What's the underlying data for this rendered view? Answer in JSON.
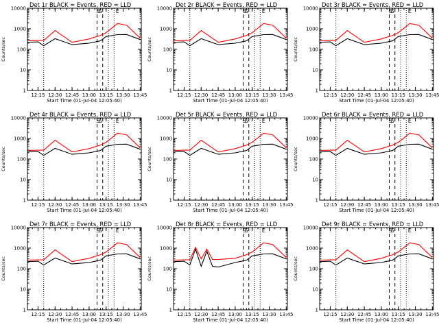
{
  "window": {
    "title": ""
  },
  "colors": {
    "events": "#000000",
    "lld": "#ff0000",
    "axis": "#000000",
    "background": "#ffffff"
  },
  "chart_data": [
    {
      "type": "line",
      "title": "Det 1r BLACK = Events, RED = LLD",
      "xlabel": "Start Time (01-Jul-04 12:05:40)",
      "ylabel": "Counts/sec",
      "x_ticks": [
        "12:15",
        "12:30",
        "12:45",
        "13:00",
        "13:15",
        "13:30",
        "13:45"
      ],
      "y_ticks": [
        "1",
        "10",
        "100",
        "1000",
        "10000"
      ],
      "ylim": [
        1,
        10000
      ],
      "yscale": "log",
      "markers": [
        "S",
        "S",
        "E"
      ],
      "series": [
        {
          "name": "Events",
          "color": "#000000",
          "x": [
            "12:06",
            "12:15",
            "12:20",
            "12:30",
            "12:45",
            "13:00",
            "13:10",
            "13:15",
            "13:25",
            "13:33",
            "13:45"
          ],
          "values": [
            220,
            230,
            150,
            330,
            170,
            200,
            260,
            420,
            520,
            530,
            300
          ]
        },
        {
          "name": "LLD",
          "color": "#ff0000",
          "x": [
            "12:06",
            "12:15",
            "12:20",
            "12:30",
            "12:45",
            "13:00",
            "13:10",
            "13:15",
            "13:25",
            "13:33",
            "13:45"
          ],
          "values": [
            260,
            270,
            270,
            820,
            220,
            320,
            480,
            650,
            1800,
            1500,
            350
          ]
        }
      ]
    },
    {
      "type": "line",
      "title": "Det 2r BLACK = Events, RED = LLD",
      "xlabel": "Start Time (01-Jul-04 12:05:40)",
      "ylabel": "Counts/sec",
      "x_ticks": [
        "12:15",
        "12:30",
        "12:45",
        "13:00",
        "13:15",
        "13:30",
        "13:45"
      ],
      "y_ticks": [
        "1",
        "10",
        "100",
        "1000",
        "10000"
      ],
      "ylim": [
        1,
        10000
      ],
      "yscale": "log",
      "markers": [
        "S",
        "S",
        "E"
      ],
      "series": [
        {
          "name": "Events",
          "color": "#000000",
          "x": [
            "12:06",
            "12:15",
            "12:20",
            "12:30",
            "12:45",
            "13:00",
            "13:10",
            "13:15",
            "13:25",
            "13:33",
            "13:45"
          ],
          "values": [
            220,
            230,
            150,
            330,
            170,
            200,
            260,
            420,
            520,
            530,
            300
          ]
        },
        {
          "name": "LLD",
          "color": "#ff0000",
          "x": [
            "12:06",
            "12:15",
            "12:20",
            "12:30",
            "12:45",
            "13:00",
            "13:10",
            "13:15",
            "13:25",
            "13:33",
            "13:45"
          ],
          "values": [
            260,
            270,
            270,
            820,
            220,
            320,
            480,
            650,
            1800,
            1500,
            350
          ]
        }
      ]
    },
    {
      "type": "line",
      "title": "Det 3r BLACK = Events, RED = LLD",
      "xlabel": "Start Time (01-Jul-04 12:05:40)",
      "ylabel": "Counts/sec",
      "x_ticks": [
        "12:15",
        "12:30",
        "12:45",
        "13:00",
        "13:15",
        "13:30",
        "13:45"
      ],
      "y_ticks": [
        "1",
        "10",
        "100",
        "1000",
        "10000"
      ],
      "ylim": [
        1,
        10000
      ],
      "yscale": "log",
      "markers": [
        "S",
        "S",
        "E"
      ],
      "series": [
        {
          "name": "Events",
          "color": "#000000",
          "x": [
            "12:06",
            "12:15",
            "12:20",
            "12:30",
            "12:45",
            "13:00",
            "13:10",
            "13:15",
            "13:25",
            "13:33",
            "13:45"
          ],
          "values": [
            220,
            230,
            150,
            330,
            170,
            200,
            260,
            420,
            520,
            530,
            300
          ]
        },
        {
          "name": "LLD",
          "color": "#ff0000",
          "x": [
            "12:06",
            "12:15",
            "12:20",
            "12:30",
            "12:45",
            "13:00",
            "13:10",
            "13:15",
            "13:25",
            "13:33",
            "13:45"
          ],
          "values": [
            260,
            270,
            270,
            820,
            220,
            320,
            480,
            650,
            1800,
            1500,
            350
          ]
        }
      ]
    },
    {
      "type": "line",
      "title": "Det 4r BLACK = Events, RED = LLD",
      "xlabel": "Start Time (01-Jul-04 12:05:40)",
      "ylabel": "Counts/sec",
      "x_ticks": [
        "12:15",
        "12:30",
        "12:45",
        "13:00",
        "13:15",
        "13:30",
        "13:45"
      ],
      "y_ticks": [
        "1",
        "10",
        "100",
        "1000",
        "10000"
      ],
      "ylim": [
        1,
        10000
      ],
      "yscale": "log",
      "markers": [
        "S",
        "S",
        "E"
      ],
      "series": [
        {
          "name": "Events",
          "color": "#000000",
          "x": [
            "12:06",
            "12:15",
            "12:20",
            "12:30",
            "12:45",
            "13:00",
            "13:10",
            "13:15",
            "13:25",
            "13:33",
            "13:45"
          ],
          "values": [
            220,
            230,
            150,
            330,
            170,
            200,
            260,
            420,
            520,
            530,
            300
          ]
        },
        {
          "name": "LLD",
          "color": "#ff0000",
          "x": [
            "12:06",
            "12:15",
            "12:20",
            "12:30",
            "12:45",
            "13:00",
            "13:10",
            "13:15",
            "13:25",
            "13:33",
            "13:45"
          ],
          "values": [
            260,
            270,
            270,
            820,
            220,
            320,
            480,
            650,
            1800,
            1500,
            350
          ]
        }
      ]
    },
    {
      "type": "line",
      "title": "Det 5r BLACK = Events, RED = LLD",
      "xlabel": "Start Time (01-Jul-04 12:05:40)",
      "ylabel": "Counts/sec",
      "x_ticks": [
        "12:15",
        "12:30",
        "12:45",
        "13:00",
        "13:15",
        "13:30",
        "13:45"
      ],
      "y_ticks": [
        "1",
        "10",
        "100",
        "1000",
        "10000"
      ],
      "ylim": [
        1,
        10000
      ],
      "yscale": "log",
      "markers": [
        "S",
        "S",
        "E"
      ],
      "series": [
        {
          "name": "Events",
          "color": "#000000",
          "x": [
            "12:06",
            "12:15",
            "12:20",
            "12:30",
            "12:45",
            "13:00",
            "13:10",
            "13:15",
            "13:25",
            "13:33",
            "13:45"
          ],
          "values": [
            220,
            230,
            150,
            330,
            170,
            200,
            260,
            420,
            520,
            530,
            300
          ]
        },
        {
          "name": "LLD",
          "color": "#ff0000",
          "x": [
            "12:06",
            "12:15",
            "12:20",
            "12:30",
            "12:45",
            "13:00",
            "13:10",
            "13:15",
            "13:25",
            "13:33",
            "13:45"
          ],
          "values": [
            260,
            270,
            270,
            820,
            220,
            320,
            480,
            650,
            1800,
            1500,
            350
          ]
        }
      ]
    },
    {
      "type": "line",
      "title": "Det 6r BLACK = Events, RED = LLD",
      "xlabel": "Start Time (01-Jul-04 12:05:40)",
      "ylabel": "Counts/sec",
      "x_ticks": [
        "12:15",
        "12:30",
        "12:45",
        "13:00",
        "13:15",
        "13:30",
        "13:45"
      ],
      "y_ticks": [
        "1",
        "10",
        "100",
        "1000",
        "10000"
      ],
      "ylim": [
        1,
        10000
      ],
      "yscale": "log",
      "markers": [
        "S",
        "S",
        "E"
      ],
      "series": [
        {
          "name": "Events",
          "color": "#000000",
          "x": [
            "12:06",
            "12:15",
            "12:20",
            "12:30",
            "12:45",
            "13:00",
            "13:10",
            "13:15",
            "13:25",
            "13:33",
            "13:45"
          ],
          "values": [
            220,
            230,
            150,
            330,
            170,
            200,
            260,
            420,
            520,
            530,
            300
          ]
        },
        {
          "name": "LLD",
          "color": "#ff0000",
          "x": [
            "12:06",
            "12:15",
            "12:20",
            "12:30",
            "12:45",
            "13:00",
            "13:10",
            "13:15",
            "13:25",
            "13:33",
            "13:45"
          ],
          "values": [
            260,
            270,
            270,
            820,
            220,
            320,
            480,
            650,
            1800,
            1500,
            350
          ]
        }
      ]
    },
    {
      "type": "line",
      "title": "Det 7r BLACK = Events, RED = LLD",
      "xlabel": "Start Time (01-Jul-04 12:05:40)",
      "ylabel": "Counts/sec",
      "x_ticks": [
        "12:15",
        "12:30",
        "12:45",
        "13:00",
        "13:15",
        "13:30",
        "13:45"
      ],
      "y_ticks": [
        "1",
        "10",
        "100",
        "1000",
        "10000"
      ],
      "ylim": [
        1,
        10000
      ],
      "yscale": "log",
      "markers": [
        "S",
        "S",
        "E"
      ],
      "series": [
        {
          "name": "Events",
          "color": "#000000",
          "x": [
            "12:06",
            "12:15",
            "12:20",
            "12:30",
            "12:45",
            "13:00",
            "13:10",
            "13:15",
            "13:25",
            "13:33",
            "13:45"
          ],
          "values": [
            220,
            230,
            150,
            330,
            170,
            200,
            260,
            420,
            520,
            530,
            300
          ]
        },
        {
          "name": "LLD",
          "color": "#ff0000",
          "x": [
            "12:06",
            "12:15",
            "12:20",
            "12:30",
            "12:45",
            "13:00",
            "13:10",
            "13:15",
            "13:25",
            "13:33",
            "13:45"
          ],
          "values": [
            260,
            270,
            270,
            820,
            220,
            320,
            480,
            650,
            1800,
            1500,
            350
          ]
        }
      ]
    },
    {
      "type": "line",
      "title": "Det 8r BLACK = Events, RED = LLD",
      "xlabel": "Start Time (01-Jul-04 12:05:40)",
      "ylabel": "Counts/sec",
      "x_ticks": [
        "12:15",
        "12:30",
        "12:45",
        "13:00",
        "13:15",
        "13:30",
        "13:45"
      ],
      "y_ticks": [
        "1",
        "10",
        "100",
        "1000",
        "10000"
      ],
      "ylim": [
        1,
        10000
      ],
      "yscale": "log",
      "markers": [
        "S",
        "S",
        "E"
      ],
      "series": [
        {
          "name": "Events",
          "color": "#000000",
          "x": [
            "12:06",
            "12:15",
            "12:20",
            "12:25",
            "12:30",
            "12:35",
            "12:40",
            "12:45",
            "13:00",
            "13:10",
            "13:15",
            "13:25",
            "13:33",
            "13:45"
          ],
          "values": [
            220,
            230,
            150,
            900,
            130,
            700,
            130,
            120,
            200,
            260,
            420,
            520,
            530,
            300
          ]
        },
        {
          "name": "LLD",
          "color": "#ff0000",
          "x": [
            "12:06",
            "12:15",
            "12:20",
            "12:25",
            "12:30",
            "12:35",
            "12:40",
            "12:45",
            "13:00",
            "13:10",
            "13:15",
            "13:25",
            "13:33",
            "13:45"
          ],
          "values": [
            260,
            270,
            270,
            1100,
            300,
            900,
            280,
            280,
            320,
            480,
            650,
            1800,
            1500,
            350
          ]
        }
      ]
    },
    {
      "type": "line",
      "title": "Det 9r BLACK = Events, RED = LLD",
      "xlabel": "Start Time (01-Jul-04 12:05:40)",
      "ylabel": "Counts/sec",
      "x_ticks": [
        "12:15",
        "12:30",
        "12:45",
        "13:00",
        "13:15",
        "13:30",
        "13:45"
      ],
      "y_ticks": [
        "1",
        "10",
        "100",
        "1000",
        "10000"
      ],
      "ylim": [
        1,
        10000
      ],
      "yscale": "log",
      "markers": [
        "S",
        "S",
        "E"
      ],
      "series": [
        {
          "name": "Events",
          "color": "#000000",
          "x": [
            "12:06",
            "12:15",
            "12:20",
            "12:30",
            "12:45",
            "13:00",
            "13:10",
            "13:15",
            "13:25",
            "13:33",
            "13:45"
          ],
          "values": [
            220,
            230,
            150,
            330,
            170,
            200,
            260,
            420,
            520,
            530,
            300
          ]
        },
        {
          "name": "LLD",
          "color": "#ff0000",
          "x": [
            "12:06",
            "12:15",
            "12:20",
            "12:30",
            "12:45",
            "13:00",
            "13:10",
            "13:15",
            "13:25",
            "13:33",
            "13:45"
          ],
          "values": [
            260,
            270,
            270,
            820,
            220,
            320,
            480,
            650,
            1800,
            1500,
            350
          ]
        }
      ]
    }
  ]
}
